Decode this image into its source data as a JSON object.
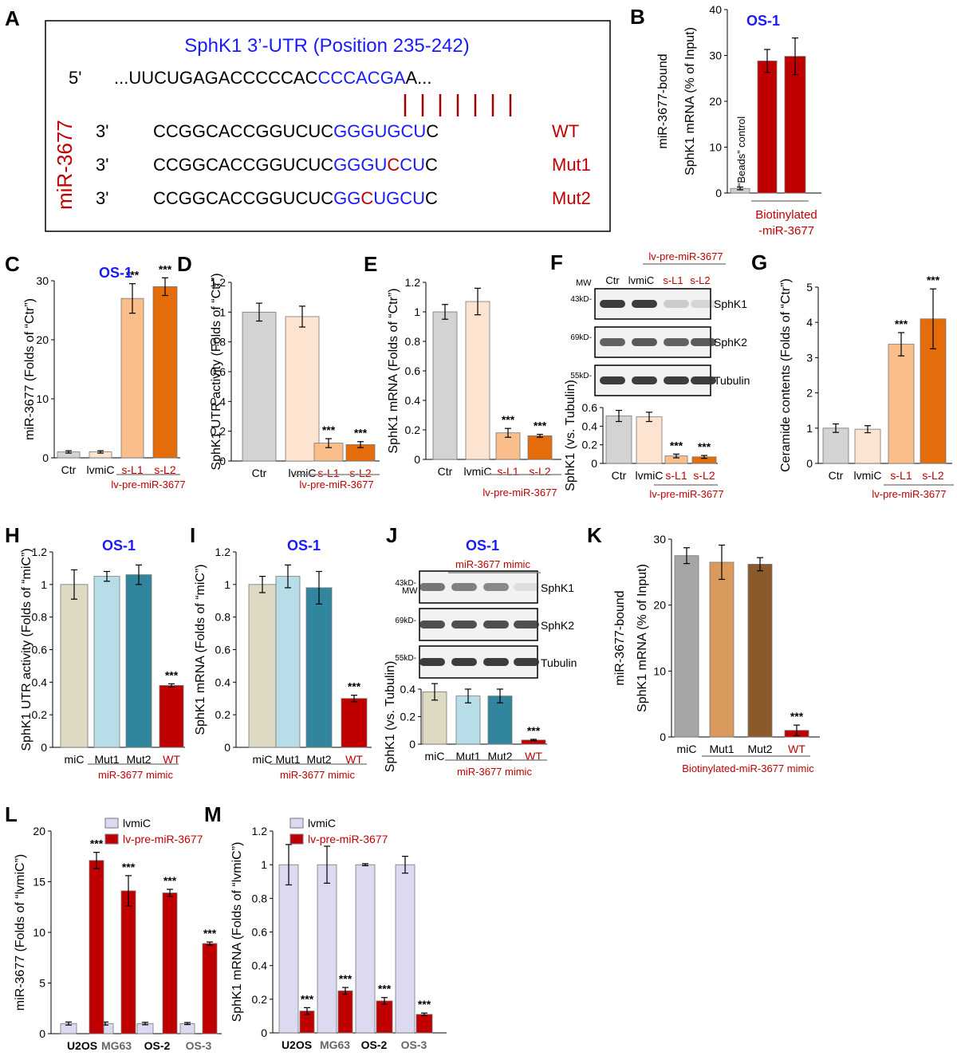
{
  "panels": [
    {
      "letter": "A"
    },
    {
      "letter": "B"
    },
    {
      "letter": "C"
    },
    {
      "letter": "D"
    },
    {
      "letter": "E"
    },
    {
      "letter": "F"
    },
    {
      "letter": "G"
    },
    {
      "letter": "H"
    },
    {
      "letter": "I"
    },
    {
      "letter": "J"
    },
    {
      "letter": "K"
    },
    {
      "letter": "L"
    },
    {
      "letter": "M"
    }
  ],
  "panel_a": {
    "title": "SphK1 3’-UTR (Position 235-242)",
    "prime5": "5'",
    "utr_black": "...UUCUGAGACCCCCAC",
    "utr_blue": "CCCACGA",
    "utr_end": "A...",
    "side_label": "miR-3677",
    "prime3": "3'",
    "rows": [
      {
        "pre": "CCGGCACCGGUCUC",
        "seed": [
          [
            "GGGUGCU",
            "blue"
          ]
        ],
        "post": "C",
        "tag": "WT"
      },
      {
        "pre": "CCGGCACCGGUCUC",
        "seed": [
          [
            "GGGU",
            "blue"
          ],
          [
            "C",
            "red"
          ],
          [
            "CU",
            "blue"
          ]
        ],
        "post": "C",
        "tag": "Mut1"
      },
      {
        "pre": "CCGGCACCGGUCUC",
        "seed": [
          [
            "GG",
            "blue"
          ],
          [
            "C",
            "red"
          ],
          [
            "UGCU",
            "blue"
          ]
        ],
        "post": "C",
        "tag": "Mut2"
      }
    ]
  },
  "labels": {
    "os1": "OS-1",
    "beads": "“Beads” control",
    "bio1": "Biotinylated",
    "bio2": "-miR-3677",
    "lvpre": "lv-pre-miR-3677",
    "mimic": "miR-3677 mimic",
    "biomimic": "Biotinylated-miR-3677 mimic",
    "mw": "MW",
    "sig": "***",
    "blot_rows": [
      "SphK1",
      "SphK2",
      "Tubulin"
    ],
    "blot_mw": [
      "43kD-",
      "69kD-",
      "55kD-"
    ]
  },
  "chart_data": [
    {
      "id": "B",
      "type": "bar",
      "categories": [
        "",
        "",
        ""
      ],
      "values": [
        1,
        28.8,
        29.8
      ],
      "errors": [
        0.3,
        2.5,
        4.0
      ],
      "colors": [
        "#d0d0d0",
        "#c00000",
        "#c00000"
      ],
      "ylabel": "miR-3677-bound\nSphK1 mRNA (% of Input)",
      "ylim": [
        0,
        40
      ],
      "yticks": [
        0,
        10,
        20,
        30,
        40
      ]
    },
    {
      "id": "C",
      "type": "bar",
      "categories": [
        "Ctr",
        "lvmiC",
        "s-L1",
        "s-L2"
      ],
      "values": [
        1,
        1,
        27,
        29
      ],
      "errors": [
        0.2,
        0.2,
        2.5,
        1.5
      ],
      "colors": [
        "#d3d3d3",
        "#fde4d0",
        "#f9be8a",
        "#e46c0a"
      ],
      "ylabel": "miR-3677 (Folds of “Ctr”)",
      "ylim": [
        0,
        30
      ],
      "yticks": [
        0,
        10,
        20,
        30
      ],
      "sig": [
        0,
        0,
        1,
        1
      ]
    },
    {
      "id": "D",
      "type": "bar",
      "categories": [
        "Ctr",
        "lvmiC",
        "s-L1",
        "s-L2"
      ],
      "values": [
        1,
        0.97,
        0.12,
        0.11
      ],
      "errors": [
        0.06,
        0.07,
        0.03,
        0.02
      ],
      "colors": [
        "#d3d3d3",
        "#fde4d0",
        "#f9be8a",
        "#e46c0a"
      ],
      "ylabel": "SphK1 UTR activity (Folds of “Ctr”)",
      "ylim": [
        0,
        1.2
      ],
      "yticks": [
        "0",
        "0.2",
        "0.4",
        "0.6",
        "0.8",
        "1",
        "1.2"
      ],
      "sig": [
        0,
        0,
        1,
        1
      ]
    },
    {
      "id": "E",
      "type": "bar",
      "categories": [
        "Ctr",
        "lvmiC",
        "s-L1",
        "s-L2"
      ],
      "values": [
        1,
        1.07,
        0.18,
        0.16
      ],
      "errors": [
        0.05,
        0.09,
        0.03,
        0.01
      ],
      "colors": [
        "#d3d3d3",
        "#fde4d0",
        "#f9be8a",
        "#e46c0a"
      ],
      "ylabel": "SphK1 mRNA (Folds of “Ctr”)",
      "ylim": [
        0,
        1.2
      ],
      "yticks": [
        "0",
        "0.2",
        "0.4",
        "0.6",
        "0.8",
        "1",
        "1.2"
      ],
      "sig": [
        0,
        0,
        1,
        1
      ]
    },
    {
      "id": "F",
      "type": "bar",
      "categories": [
        "Ctr",
        "lvmiC",
        "s-L1",
        "s-L2"
      ],
      "values": [
        0.51,
        0.5,
        0.08,
        0.07
      ],
      "errors": [
        0.06,
        0.05,
        0.02,
        0.015
      ],
      "colors": [
        "#d3d3d3",
        "#fde4d0",
        "#f9be8a",
        "#e46c0a"
      ],
      "ylabel": "SphK1 (vs. Tubulin)",
      "ylim": [
        0,
        0.6
      ],
      "yticks": [
        "0",
        "0.2",
        "0.4",
        "0.6"
      ],
      "sig": [
        0,
        0,
        1,
        1
      ]
    },
    {
      "id": "G",
      "type": "bar",
      "categories": [
        "Ctr",
        "lvmiC",
        "s-L1",
        "s-L2"
      ],
      "values": [
        1,
        0.97,
        3.38,
        4.1
      ],
      "errors": [
        0.12,
        0.1,
        0.33,
        0.85
      ],
      "colors": [
        "#d3d3d3",
        "#fde4d0",
        "#f9be8a",
        "#e46c0a"
      ],
      "ylabel": "Ceramide contents (Folds of “Ctr”)",
      "ylim": [
        0,
        5
      ],
      "yticks": [
        "0",
        "1",
        "2",
        "3",
        "4",
        "5"
      ],
      "sig": [
        0,
        0,
        1,
        1
      ]
    },
    {
      "id": "H",
      "type": "bar",
      "categories": [
        "miC",
        "Mut1",
        "Mut2",
        "WT"
      ],
      "values": [
        1,
        1.05,
        1.06,
        0.38
      ],
      "errors": [
        0.09,
        0.03,
        0.06,
        0.01
      ],
      "colors": [
        "#ddd9c3",
        "#b7dde8",
        "#31859c",
        "#c00000"
      ],
      "ylabel": "SphK1 UTR activity  (Folds of “miC”)",
      "ylim": [
        0,
        1.2
      ],
      "yticks": [
        "0",
        "0.2",
        "0.4",
        "0.6",
        "0.8",
        "1",
        "1.2"
      ],
      "sig": [
        0,
        0,
        0,
        1
      ]
    },
    {
      "id": "I",
      "type": "bar",
      "categories": [
        "miC",
        "Mut1",
        "Mut2",
        "WT"
      ],
      "values": [
        1,
        1.05,
        0.98,
        0.3
      ],
      "errors": [
        0.05,
        0.07,
        0.1,
        0.02
      ],
      "colors": [
        "#ddd9c3",
        "#b7dde8",
        "#31859c",
        "#c00000"
      ],
      "ylabel": "SphK1 mRNA (Folds of “miC”)",
      "ylim": [
        0,
        1.2
      ],
      "yticks": [
        "0",
        "0.2",
        "0.4",
        "0.6",
        "0.8",
        "1",
        "1.2"
      ],
      "sig": [
        0,
        0,
        0,
        1
      ]
    },
    {
      "id": "J",
      "type": "bar",
      "categories": [
        "miC",
        "Mut1",
        "Mut2",
        "WT"
      ],
      "values": [
        0.38,
        0.35,
        0.35,
        0.03
      ],
      "errors": [
        0.06,
        0.05,
        0.05,
        0.005
      ],
      "colors": [
        "#ddd9c3",
        "#b7dde8",
        "#31859c",
        "#c00000"
      ],
      "ylabel": "SphK1 (vs. Tubulin)",
      "ylim": [
        0,
        0.4
      ],
      "yticks": [
        "0",
        "0.2",
        "0.4"
      ],
      "sig": [
        0,
        0,
        0,
        1
      ]
    },
    {
      "id": "K",
      "type": "bar",
      "categories": [
        "miC",
        "Mut1",
        "Mut2",
        "WT"
      ],
      "values": [
        27.5,
        26.5,
        26.2,
        1
      ],
      "errors": [
        1.2,
        2.6,
        1.0,
        0.8
      ],
      "colors": [
        "#a6a6a6",
        "#d99a5b",
        "#8a5a2b",
        "#c00000"
      ],
      "ylabel": "miR-3677-bound\nSphK1 mRNA (% of Input)",
      "ylim": [
        0,
        30
      ],
      "yticks": [
        "0",
        "10",
        "20",
        "30"
      ],
      "sig": [
        0,
        0,
        0,
        1
      ]
    },
    {
      "id": "L",
      "type": "bar",
      "categories": [
        "U2OS",
        "MG63",
        "OS-2",
        "OS-3"
      ],
      "cat_colors": [
        "#000",
        "#666",
        "#000",
        "#666"
      ],
      "series": [
        {
          "name": "lvmiC",
          "values": [
            1,
            1,
            1,
            1
          ],
          "errors": [
            0.15,
            0.15,
            0.12,
            0.1
          ],
          "color": "#dcdaf0"
        },
        {
          "name": "lv-pre-miR-3677",
          "values": [
            17.1,
            14.1,
            13.9,
            8.9
          ],
          "errors": [
            0.8,
            1.5,
            0.35,
            0.15
          ],
          "color": "#c00000"
        }
      ],
      "ylabel": "miR-3677 (Folds of “lvmiC”)",
      "ylim": [
        0,
        20
      ],
      "yticks": [
        "0",
        "5",
        "10",
        "15",
        "20"
      ]
    },
    {
      "id": "M",
      "type": "bar",
      "categories": [
        "U2OS",
        "MG63",
        "OS-2",
        "OS-3"
      ],
      "cat_colors": [
        "#000",
        "#666",
        "#000",
        "#666"
      ],
      "series": [
        {
          "name": "lvmiC",
          "values": [
            1,
            1,
            1,
            1
          ],
          "errors": [
            0.12,
            0.11,
            0.006,
            0.05
          ],
          "color": "#dcdaf0"
        },
        {
          "name": "lv-pre-miR-3677",
          "values": [
            0.13,
            0.25,
            0.19,
            0.11
          ],
          "errors": [
            0.02,
            0.02,
            0.02,
            0.008
          ],
          "color": "#c00000"
        }
      ],
      "ylabel": "SphK1 mRNA (Folds of “lvmiC”)",
      "ylim": [
        0,
        1.2
      ],
      "yticks": [
        "0",
        "0.2",
        "0.4",
        "0.6",
        "0.8",
        "1",
        "1.2"
      ]
    }
  ]
}
